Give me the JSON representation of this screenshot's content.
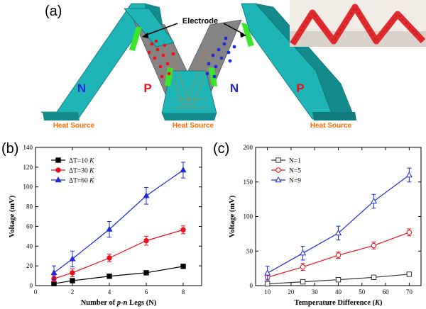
{
  "panels": {
    "a": "(a)",
    "b": "(b)",
    "c": "(c)"
  },
  "schematic": {
    "electrode_label": "Electrode",
    "heat_source_labels": [
      "Heat Source",
      "Heat Source",
      "Heat Source"
    ],
    "leg_labels": [
      "N",
      "P",
      "N",
      "P"
    ],
    "colors": {
      "frame": "#1fb5b7",
      "frame_dark": "#138a8c",
      "electrode": "#39e62b",
      "p_dot": "#e8101c",
      "n_dot": "#1d2bd9",
      "heat": "#ff6a00",
      "leg_fill": "#8c8c8c",
      "photo_red": "#e02a2e"
    }
  },
  "chart_data": [
    {
      "type": "line",
      "title": "",
      "xlabel_parts": [
        "Number of ",
        "p-n",
        " Legs (N)"
      ],
      "ylabel": "Voltage (mV)",
      "xlim": [
        0,
        9
      ],
      "ylim": [
        0,
        140
      ],
      "xticks": [
        0,
        2,
        4,
        6,
        8
      ],
      "yticks": [
        0,
        20,
        40,
        60,
        80,
        100,
        120,
        140
      ],
      "legend_position": "top-left",
      "series": [
        {
          "name_parts": [
            "ΔT=10 ",
            "K"
          ],
          "marker": "square",
          "color": "#000000",
          "x": [
            1,
            2,
            4,
            6,
            8
          ],
          "y": [
            2,
            5,
            9.5,
            13,
            19.5
          ],
          "err": [
            1,
            1,
            1,
            1,
            1.5
          ]
        },
        {
          "name_parts": [
            "ΔT=30 ",
            "K"
          ],
          "marker": "circle",
          "color": "#e8101c",
          "x": [
            1,
            2,
            4,
            6,
            8
          ],
          "y": [
            7,
            13,
            28,
            45.5,
            56.5
          ],
          "err": [
            3,
            4,
            4,
            4.5,
            4
          ]
        },
        {
          "name_parts": [
            "ΔT=60 ",
            "K"
          ],
          "marker": "triangle",
          "color": "#1d2bd9",
          "x": [
            1,
            2,
            4,
            6,
            8
          ],
          "y": [
            13,
            27,
            57,
            91,
            117
          ],
          "err": [
            7,
            8,
            8,
            8.5,
            8
          ]
        }
      ]
    },
    {
      "type": "line",
      "title": "",
      "xlabel_parts": [
        "Temperature Difference (",
        "K",
        ")"
      ],
      "ylabel": "Voltage (mV)",
      "xlim": [
        5,
        75
      ],
      "ylim": [
        0,
        200
      ],
      "xticks": [
        10,
        20,
        30,
        40,
        50,
        60,
        70
      ],
      "yticks": [
        0,
        50,
        100,
        150,
        200
      ],
      "legend_position": "top-left",
      "series": [
        {
          "name_parts": [
            "N=1"
          ],
          "marker": "open-square",
          "color": "#333333",
          "x": [
            10,
            25,
            40,
            55,
            70
          ],
          "y": [
            2.5,
            5.5,
            8.5,
            12,
            16.5
          ],
          "err": [
            1,
            1,
            1,
            1.5,
            2
          ]
        },
        {
          "name_parts": [
            "N=5"
          ],
          "marker": "open-circle",
          "color": "#e8101c",
          "x": [
            10,
            25,
            40,
            55,
            70
          ],
          "y": [
            12,
            27,
            44,
            58,
            77
          ],
          "err": [
            4,
            5,
            4.5,
            5,
            5
          ]
        },
        {
          "name_parts": [
            "N=9"
          ],
          "marker": "open-triangle",
          "color": "#1d2bd9",
          "x": [
            10,
            25,
            40,
            55,
            70
          ],
          "y": [
            18,
            47,
            76,
            122,
            160
          ],
          "err": [
            10,
            10,
            10,
            10,
            10
          ]
        }
      ]
    }
  ]
}
